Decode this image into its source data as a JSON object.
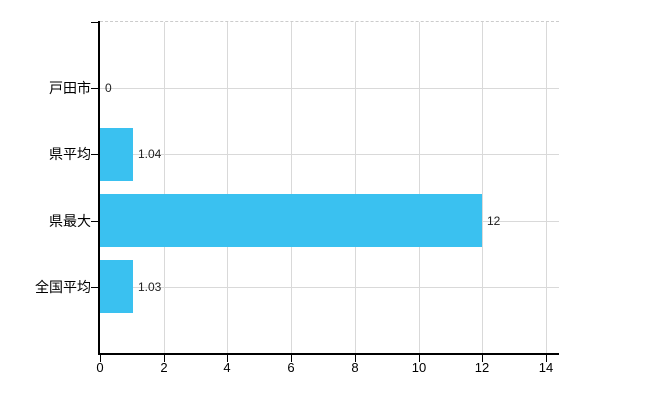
{
  "chart_data": {
    "type": "bar",
    "orientation": "horizontal",
    "title": "",
    "categories": [
      "戸田市",
      "県平均",
      "県最大",
      "全国平均"
    ],
    "values": [
      0,
      1.04,
      12,
      1.03
    ],
    "value_labels": [
      "0",
      "1.04",
      "12",
      "1.03"
    ],
    "xlim": [
      0,
      14
    ],
    "x_ticks": [
      0,
      2,
      4,
      6,
      8,
      10,
      12,
      14
    ],
    "x_tick_labels": [
      "0",
      "2",
      "4",
      "6",
      "8",
      "10",
      "12",
      "14"
    ],
    "grid": true,
    "legend": false,
    "colors": {
      "bar": "#3ac1f0",
      "grid_line": "#d9d9d9",
      "top_border": "#cccccc",
      "axis": "#000000",
      "category_label": "#000000",
      "value_label": "#222222",
      "tick_label": "#000000",
      "background": "#ffffff"
    }
  }
}
